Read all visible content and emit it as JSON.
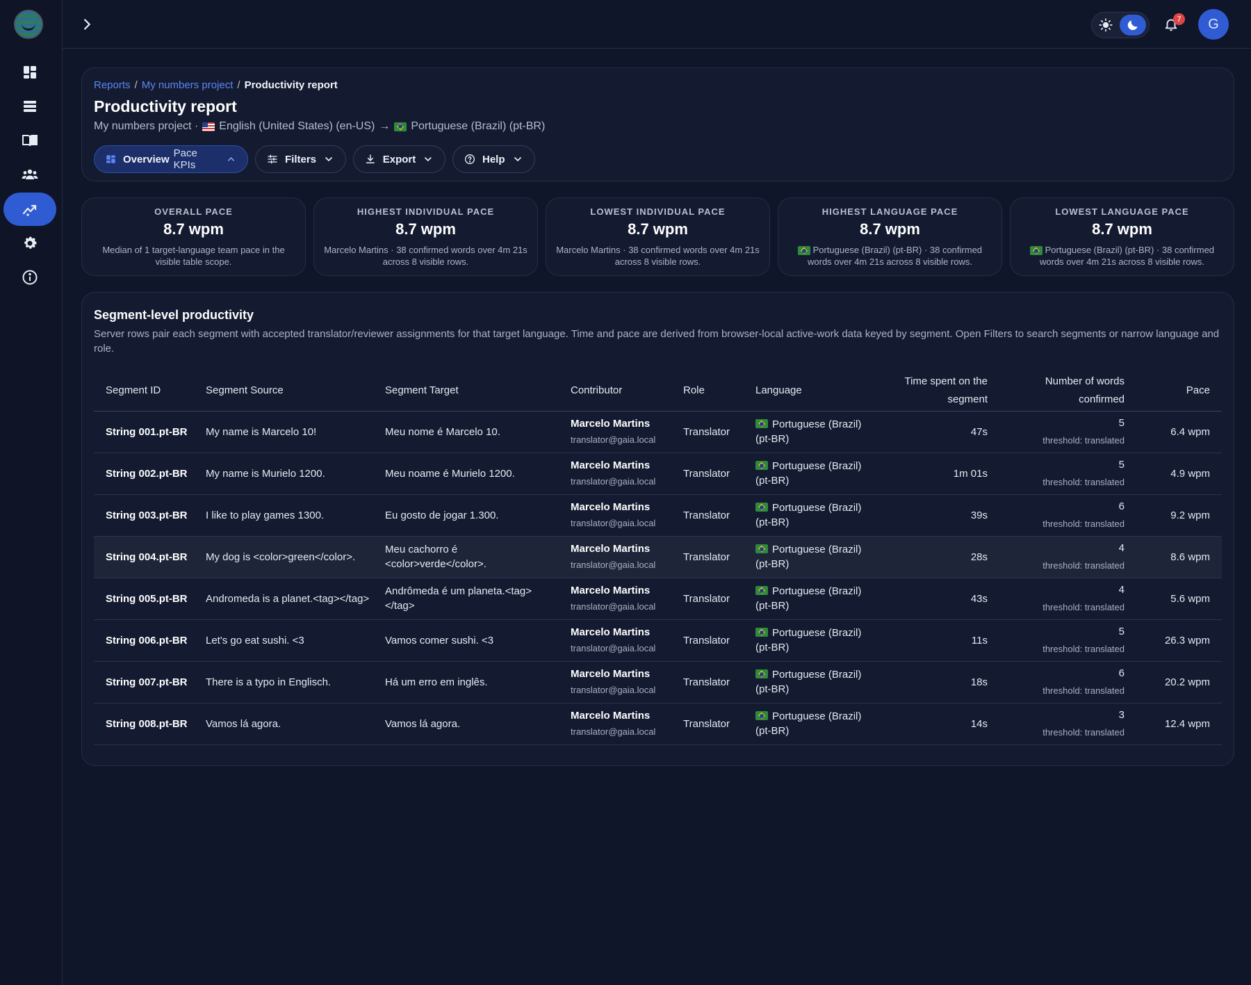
{
  "nav": {
    "items": [
      {
        "name": "dashboard-icon"
      },
      {
        "name": "list-icon"
      },
      {
        "name": "book-icon"
      },
      {
        "name": "users-icon"
      },
      {
        "name": "reports-icon",
        "active": true
      },
      {
        "name": "gear-icon"
      },
      {
        "name": "info-icon"
      }
    ]
  },
  "topbar": {
    "notification_count": "7",
    "avatar_initial": "G"
  },
  "breadcrumb": {
    "items": [
      "Reports",
      "My numbers project",
      "Productivity report"
    ],
    "separator": "/"
  },
  "header": {
    "title": "Productivity report",
    "project": "My numbers project ·",
    "source_lang": "English (United States) (en-US)",
    "arrow": "→",
    "target_lang": "Portuguese (Brazil) (pt-BR)"
  },
  "toolbar": {
    "overview_label": "Overview",
    "overview_sub": "Pace KPIs",
    "filters_label": "Filters",
    "export_label": "Export",
    "help_label": "Help"
  },
  "kpis": [
    {
      "label": "OVERALL PACE",
      "value": "8.7 wpm",
      "desc": "Median of 1 target-language team pace in the visible table scope."
    },
    {
      "label": "HIGHEST INDIVIDUAL PACE",
      "value": "8.7 wpm",
      "desc": "Marcelo Martins · 38 confirmed words over 4m 21s across 8 visible rows."
    },
    {
      "label": "LOWEST INDIVIDUAL PACE",
      "value": "8.7 wpm",
      "desc": "Marcelo Martins · 38 confirmed words over 4m 21s across 8 visible rows."
    },
    {
      "label": "HIGHEST LANGUAGE PACE",
      "value": "8.7 wpm",
      "desc": "Portuguese (Brazil) (pt-BR) · 38 confirmed words over 4m 21s across 8 visible rows."
    },
    {
      "label": "LOWEST LANGUAGE PACE",
      "value": "8.7 wpm",
      "desc": "Portuguese (Brazil) (pt-BR) · 38 confirmed words over 4m 21s across 8 visible rows."
    }
  ],
  "segments": {
    "title": "Segment-level productivity",
    "description": "Server rows pair each segment with accepted translator/reviewer assignments for that target language. Time and pace are derived from browser-local active-work data keyed by segment. Open Filters to search segments or narrow language and role.",
    "columns": [
      "Segment ID",
      "Segment Source",
      "Segment Target",
      "Contributor",
      "Role",
      "Language",
      "Time spent on the segment",
      "Number of words confirmed",
      "Pace"
    ],
    "rows": [
      {
        "id": "String 001.pt-BR",
        "source": "My name is Marcelo 10!",
        "target": "Meu nome é Marcelo 10.",
        "name": "Marcelo Martins",
        "email": "translator@gaia.local",
        "role": "Translator",
        "lang": "Portuguese (Brazil) (pt-BR)",
        "time": "47s",
        "words": "5",
        "threshold": "threshold: translated",
        "pace": "6.4 wpm"
      },
      {
        "id": "String 002.pt-BR",
        "source": "My name is Murielo 1200.",
        "target": "Meu noame é Murielo 1200.",
        "name": "Marcelo Martins",
        "email": "translator@gaia.local",
        "role": "Translator",
        "lang": "Portuguese (Brazil) (pt-BR)",
        "time": "1m 01s",
        "words": "5",
        "threshold": "threshold: translated",
        "pace": "4.9 wpm"
      },
      {
        "id": "String 003.pt-BR",
        "source": "I like to play games 1300.",
        "target": "Eu gosto de jogar 1.300.",
        "name": "Marcelo Martins",
        "email": "translator@gaia.local",
        "role": "Translator",
        "lang": "Portuguese (Brazil) (pt-BR)",
        "time": "39s",
        "words": "6",
        "threshold": "threshold: translated",
        "pace": "9.2 wpm"
      },
      {
        "id": "String 004.pt-BR",
        "source": "My dog is <color>green</color>.",
        "target": "Meu cachorro é <color>verde</color>.",
        "name": "Marcelo Martins",
        "email": "translator@gaia.local",
        "role": "Translator",
        "lang": "Portuguese (Brazil) (pt-BR)",
        "time": "28s",
        "words": "4",
        "threshold": "threshold: translated",
        "pace": "8.6 wpm"
      },
      {
        "id": "String 005.pt-BR",
        "source": "Andromeda is a planet.<tag></tag>",
        "target": "Andrômeda é um planeta.<tag></tag>",
        "name": "Marcelo Martins",
        "email": "translator@gaia.local",
        "role": "Translator",
        "lang": "Portuguese (Brazil) (pt-BR)",
        "time": "43s",
        "words": "4",
        "threshold": "threshold: translated",
        "pace": "5.6 wpm"
      },
      {
        "id": "String 006.pt-BR",
        "source": "Let's go eat sushi. <3",
        "target": "Vamos comer sushi. <3",
        "name": "Marcelo Martins",
        "email": "translator@gaia.local",
        "role": "Translator",
        "lang": "Portuguese (Brazil) (pt-BR)",
        "time": "11s",
        "words": "5",
        "threshold": "threshold: translated",
        "pace": "26.3 wpm"
      },
      {
        "id": "String 007.pt-BR",
        "source": "There is a typo in Englisch.",
        "target": "Há um erro em inglês.",
        "name": "Marcelo Martins",
        "email": "translator@gaia.local",
        "role": "Translator",
        "lang": "Portuguese (Brazil) (pt-BR)",
        "time": "18s",
        "words": "6",
        "threshold": "threshold: translated",
        "pace": "20.2 wpm"
      },
      {
        "id": "String 008.pt-BR",
        "source": "Vamos lá agora.",
        "target": "Vamos lá agora.",
        "name": "Marcelo Martins",
        "email": "translator@gaia.local",
        "role": "Translator",
        "lang": "Portuguese (Brazil) (pt-BR)",
        "time": "14s",
        "words": "3",
        "threshold": "threshold: translated",
        "pace": "12.4 wpm"
      }
    ]
  }
}
